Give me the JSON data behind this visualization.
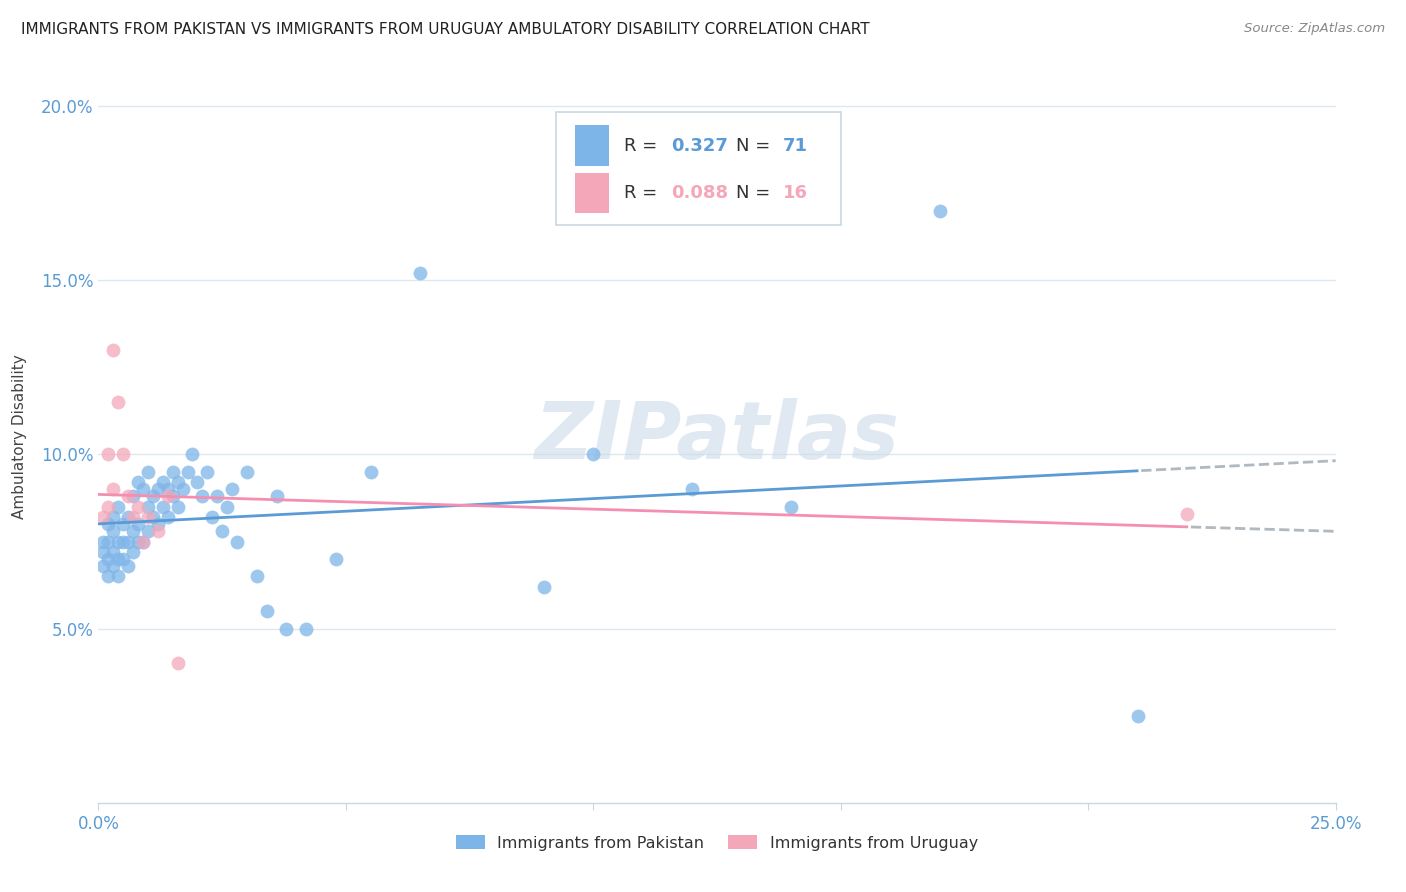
{
  "title": "IMMIGRANTS FROM PAKISTAN VS IMMIGRANTS FROM URUGUAY AMBULATORY DISABILITY CORRELATION CHART",
  "source": "Source: ZipAtlas.com",
  "ylabel": "Ambulatory Disability",
  "xlim": [
    0.0,
    0.25
  ],
  "ylim": [
    0.0,
    0.21
  ],
  "yticks": [
    0.05,
    0.1,
    0.15,
    0.2
  ],
  "ytick_labels": [
    "5.0%",
    "10.0%",
    "15.0%",
    "20.0%"
  ],
  "xtick_labels": [
    "0.0%",
    "",
    "",
    "",
    "",
    "25.0%"
  ],
  "pakistan_color": "#7eb5e8",
  "uruguay_color": "#f4a7b9",
  "pakistan_R": 0.327,
  "pakistan_N": 71,
  "uruguay_R": 0.088,
  "uruguay_N": 16,
  "pakistan_scatter_x": [
    0.001,
    0.001,
    0.001,
    0.002,
    0.002,
    0.002,
    0.002,
    0.003,
    0.003,
    0.003,
    0.003,
    0.004,
    0.004,
    0.004,
    0.004,
    0.005,
    0.005,
    0.005,
    0.006,
    0.006,
    0.006,
    0.007,
    0.007,
    0.007,
    0.008,
    0.008,
    0.008,
    0.009,
    0.009,
    0.01,
    0.01,
    0.01,
    0.011,
    0.011,
    0.012,
    0.012,
    0.013,
    0.013,
    0.014,
    0.014,
    0.015,
    0.015,
    0.016,
    0.016,
    0.017,
    0.018,
    0.019,
    0.02,
    0.021,
    0.022,
    0.023,
    0.024,
    0.025,
    0.026,
    0.027,
    0.028,
    0.03,
    0.032,
    0.034,
    0.036,
    0.038,
    0.042,
    0.048,
    0.055,
    0.065,
    0.09,
    0.1,
    0.12,
    0.14,
    0.17,
    0.21
  ],
  "pakistan_scatter_y": [
    0.068,
    0.072,
    0.075,
    0.065,
    0.07,
    0.075,
    0.08,
    0.068,
    0.072,
    0.078,
    0.082,
    0.065,
    0.07,
    0.075,
    0.085,
    0.07,
    0.075,
    0.08,
    0.068,
    0.075,
    0.082,
    0.072,
    0.078,
    0.088,
    0.075,
    0.08,
    0.092,
    0.075,
    0.09,
    0.078,
    0.085,
    0.095,
    0.082,
    0.088,
    0.08,
    0.09,
    0.085,
    0.092,
    0.082,
    0.09,
    0.088,
    0.095,
    0.085,
    0.092,
    0.09,
    0.095,
    0.1,
    0.092,
    0.088,
    0.095,
    0.082,
    0.088,
    0.078,
    0.085,
    0.09,
    0.075,
    0.095,
    0.065,
    0.055,
    0.088,
    0.05,
    0.05,
    0.07,
    0.095,
    0.152,
    0.062,
    0.1,
    0.09,
    0.085,
    0.17,
    0.025
  ],
  "uruguay_scatter_x": [
    0.001,
    0.002,
    0.002,
    0.003,
    0.003,
    0.004,
    0.005,
    0.006,
    0.007,
    0.008,
    0.009,
    0.01,
    0.012,
    0.014,
    0.016,
    0.22
  ],
  "uruguay_scatter_y": [
    0.082,
    0.085,
    0.1,
    0.09,
    0.13,
    0.115,
    0.1,
    0.088,
    0.082,
    0.085,
    0.075,
    0.082,
    0.078,
    0.088,
    0.04,
    0.083
  ],
  "background_color": "#ffffff",
  "grid_color": "#dce8f0",
  "watermark": "ZIPatlas",
  "pakistan_line_color": "#5b9bd5",
  "uruguay_line_color": "#f48fb1",
  "trendline_ext_color": "#b0b8c0"
}
